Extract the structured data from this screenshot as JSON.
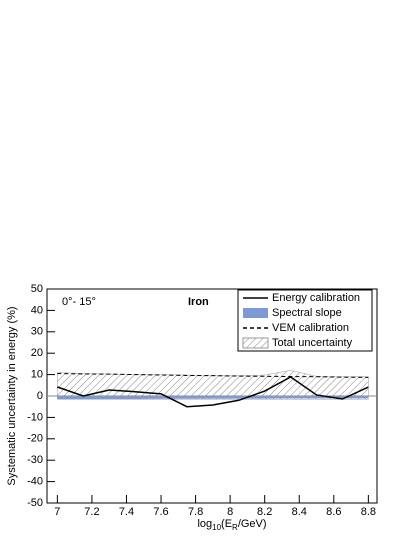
{
  "chart_data": {
    "type": "line",
    "y_label": "Systematic uncertainty in energy (%)",
    "x_label": {
      "parts": [
        "log",
        "10",
        "(E",
        "R",
        "/GeV)"
      ]
    },
    "annotations": [
      "0°- 15°",
      "Iron"
    ],
    "x": [
      7.0,
      7.15,
      7.3,
      7.45,
      7.6,
      7.75,
      7.9,
      8.05,
      8.2,
      8.35,
      8.5,
      8.65,
      8.8
    ],
    "series": [
      {
        "name": "Energy calibration",
        "color": "#000000",
        "style": "line",
        "values": [
          4.2,
          0,
          2.8,
          2,
          1,
          -5,
          -4.2,
          -2,
          2.3,
          8.9,
          0.5,
          -1.4,
          4.2
        ]
      },
      {
        "name": "Spectral slope",
        "color": "#7b9ad6",
        "style": "area",
        "values": [
          -1.5,
          -1.5,
          -1.4,
          -1.4,
          -1.3,
          -1.3,
          -1.2,
          -1.2,
          -1.2,
          -1.1,
          -1.1,
          -1.1,
          -1.1
        ]
      },
      {
        "name": "VEM calibration",
        "color": "#000000",
        "style": "dashed",
        "values": [
          10.5,
          10.3,
          10.2,
          10,
          9.8,
          9.6,
          9.5,
          9.3,
          9.2,
          9.1,
          9.0,
          8.8,
          8.7
        ]
      },
      {
        "name": "Total uncertainty",
        "color": "#555555",
        "style": "hatched",
        "values": [
          11,
          10.5,
          10.3,
          10.1,
          10,
          9.8,
          9.6,
          9.5,
          9.8,
          12,
          9.2,
          9,
          9
        ],
        "lower": [
          -1.5,
          -1.5,
          -1.5,
          -1.5,
          -1.5,
          -1.5,
          -1.5,
          -1.5,
          -1.5,
          -1.5,
          -1.5,
          -1.5,
          -1.5
        ]
      }
    ],
    "xlim": [
      6.94,
      8.85
    ],
    "ylim": [
      -50,
      50
    ],
    "xticks": [
      7,
      7.2,
      7.4,
      7.6,
      7.8,
      8,
      8.2,
      8.4,
      8.6,
      8.8
    ],
    "yticks": [
      -50,
      -40,
      -30,
      -20,
      -10,
      0,
      10,
      20,
      30,
      40,
      50
    ],
    "legend": "top-right"
  }
}
